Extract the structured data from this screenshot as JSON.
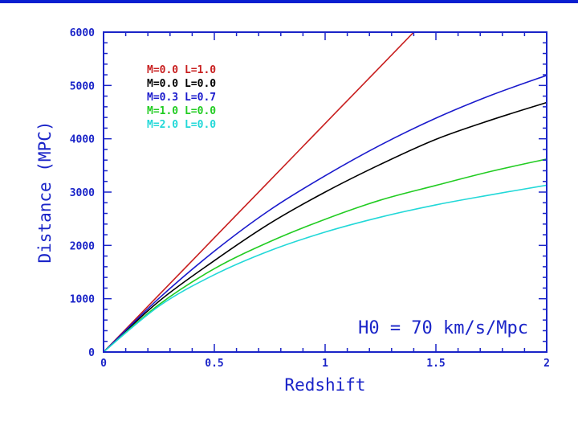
{
  "colors": {
    "frame": "#1a24c8",
    "background": "#ffffff",
    "top_rule": "#0a1fd0"
  },
  "chart_data": {
    "type": "line",
    "title": "",
    "xlabel": "Redshift",
    "ylabel": "Distance (MPC)",
    "xlim": [
      0,
      2
    ],
    "ylim": [
      0,
      6000
    ],
    "x_ticks": [
      "0",
      "0.5",
      "1",
      "1.5",
      "2"
    ],
    "y_ticks": [
      "0",
      "1000",
      "2000",
      "3000",
      "4000",
      "5000",
      "6000"
    ],
    "grid": false,
    "legend_position": "top-left",
    "annotation": "H0 = 70 km/s/Mpc",
    "series": [
      {
        "name": "M=0.0 L=1.0",
        "color": "#c81e1e",
        "x": [
          0,
          0.25,
          0.5,
          0.75,
          1.0,
          1.25,
          1.4
        ],
        "y": [
          0,
          1071,
          2143,
          3214,
          4286,
          5357,
          6000
        ]
      },
      {
        "name": "M=0.0 L=0.0",
        "color": "#000000",
        "x": [
          0,
          0.25,
          0.5,
          0.75,
          1.0,
          1.25,
          1.5,
          1.75,
          2.0
        ],
        "y": [
          0,
          952,
          1714,
          2411,
          3000,
          3521,
          3990,
          4354,
          4680
        ]
      },
      {
        "name": "M=0.3 L=0.7",
        "color": "#1a1acc",
        "x": [
          0,
          0.25,
          0.5,
          0.75,
          1.0,
          1.25,
          1.5,
          1.75,
          2.0
        ],
        "y": [
          0,
          1007,
          1892,
          2663,
          3306,
          3883,
          4387,
          4818,
          5190
        ]
      },
      {
        "name": "M=1.0 L=0.0",
        "color": "#22cc22",
        "x": [
          0,
          0.25,
          0.5,
          0.75,
          1.0,
          1.25,
          1.5,
          1.75,
          2.0
        ],
        "y": [
          0,
          889,
          1563,
          2069,
          2490,
          2850,
          3125,
          3390,
          3620
        ]
      },
      {
        "name": "M=2.0 L=0.0",
        "color": "#22d8d8",
        "x": [
          0,
          0.25,
          0.5,
          0.75,
          1.0,
          1.25,
          1.5,
          1.75,
          2.0
        ],
        "y": [
          0,
          860,
          1450,
          1900,
          2250,
          2530,
          2760,
          2950,
          3130
        ]
      }
    ]
  }
}
